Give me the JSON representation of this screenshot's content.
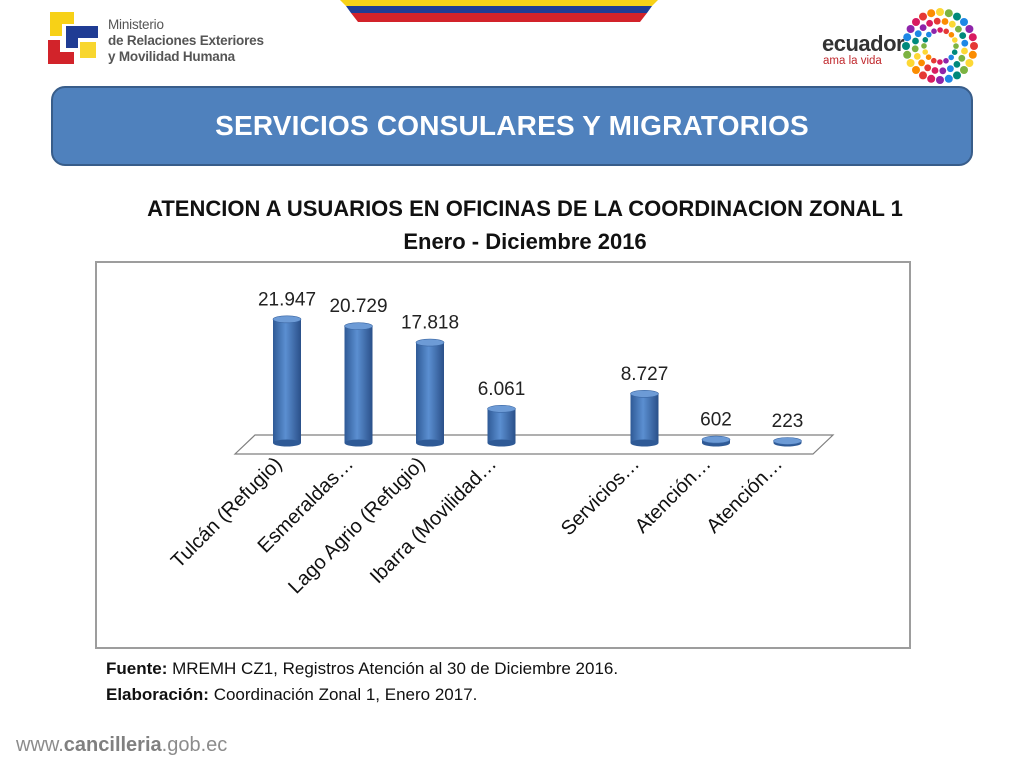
{
  "header": {
    "ministry": {
      "line1": "Ministerio",
      "line2": "de Relaciones Exteriores",
      "line3": "y Movilidad Humana"
    },
    "brand": {
      "word": "ecuador",
      "tagline": "ama la vida"
    },
    "colors": {
      "flag_yellow": "#f7d117",
      "flag_blue": "#1f3c94",
      "flag_red": "#d2232a"
    }
  },
  "banner": {
    "title": "SERVICIOS CONSULARES Y MIGRATORIOS",
    "color": "#4f81bd"
  },
  "chart_data": {
    "type": "bar",
    "title": "ATENCION A USUARIOS EN OFICINAS DE LA COORDINACION ZONAL 1",
    "subtitle": "Enero - Diciembre 2016",
    "categories": [
      "Tulcán (Refugio)",
      "Esmeraldas…",
      "Lago Agrio (Refugio)",
      "Ibarra (Movilidad…",
      "",
      "Servicios…",
      "Atención…",
      "Atención…"
    ],
    "values": [
      21947,
      20729,
      17818,
      6061,
      null,
      8727,
      602,
      223
    ],
    "value_labels": [
      "21.947",
      "20.729",
      "17.818",
      "6.061",
      "",
      "8.727",
      "602",
      "223"
    ],
    "ylim": [
      0,
      22000
    ],
    "grid": false,
    "legend": "none",
    "bar_color": "#4f81bd",
    "style": "3d-cylinder"
  },
  "source": {
    "fuente_label": "Fuente:",
    "fuente_text": " MREMH CZ1, Registros Atención al 30 de Diciembre 2016.",
    "elaboracion_label": "Elaboración:",
    "elaboracion_text": " Coordinación Zonal 1, Enero 2017."
  },
  "footer": {
    "website_prefix": "www.",
    "website_domain": "cancilleria",
    "website_suffix": ".gob.ec"
  }
}
